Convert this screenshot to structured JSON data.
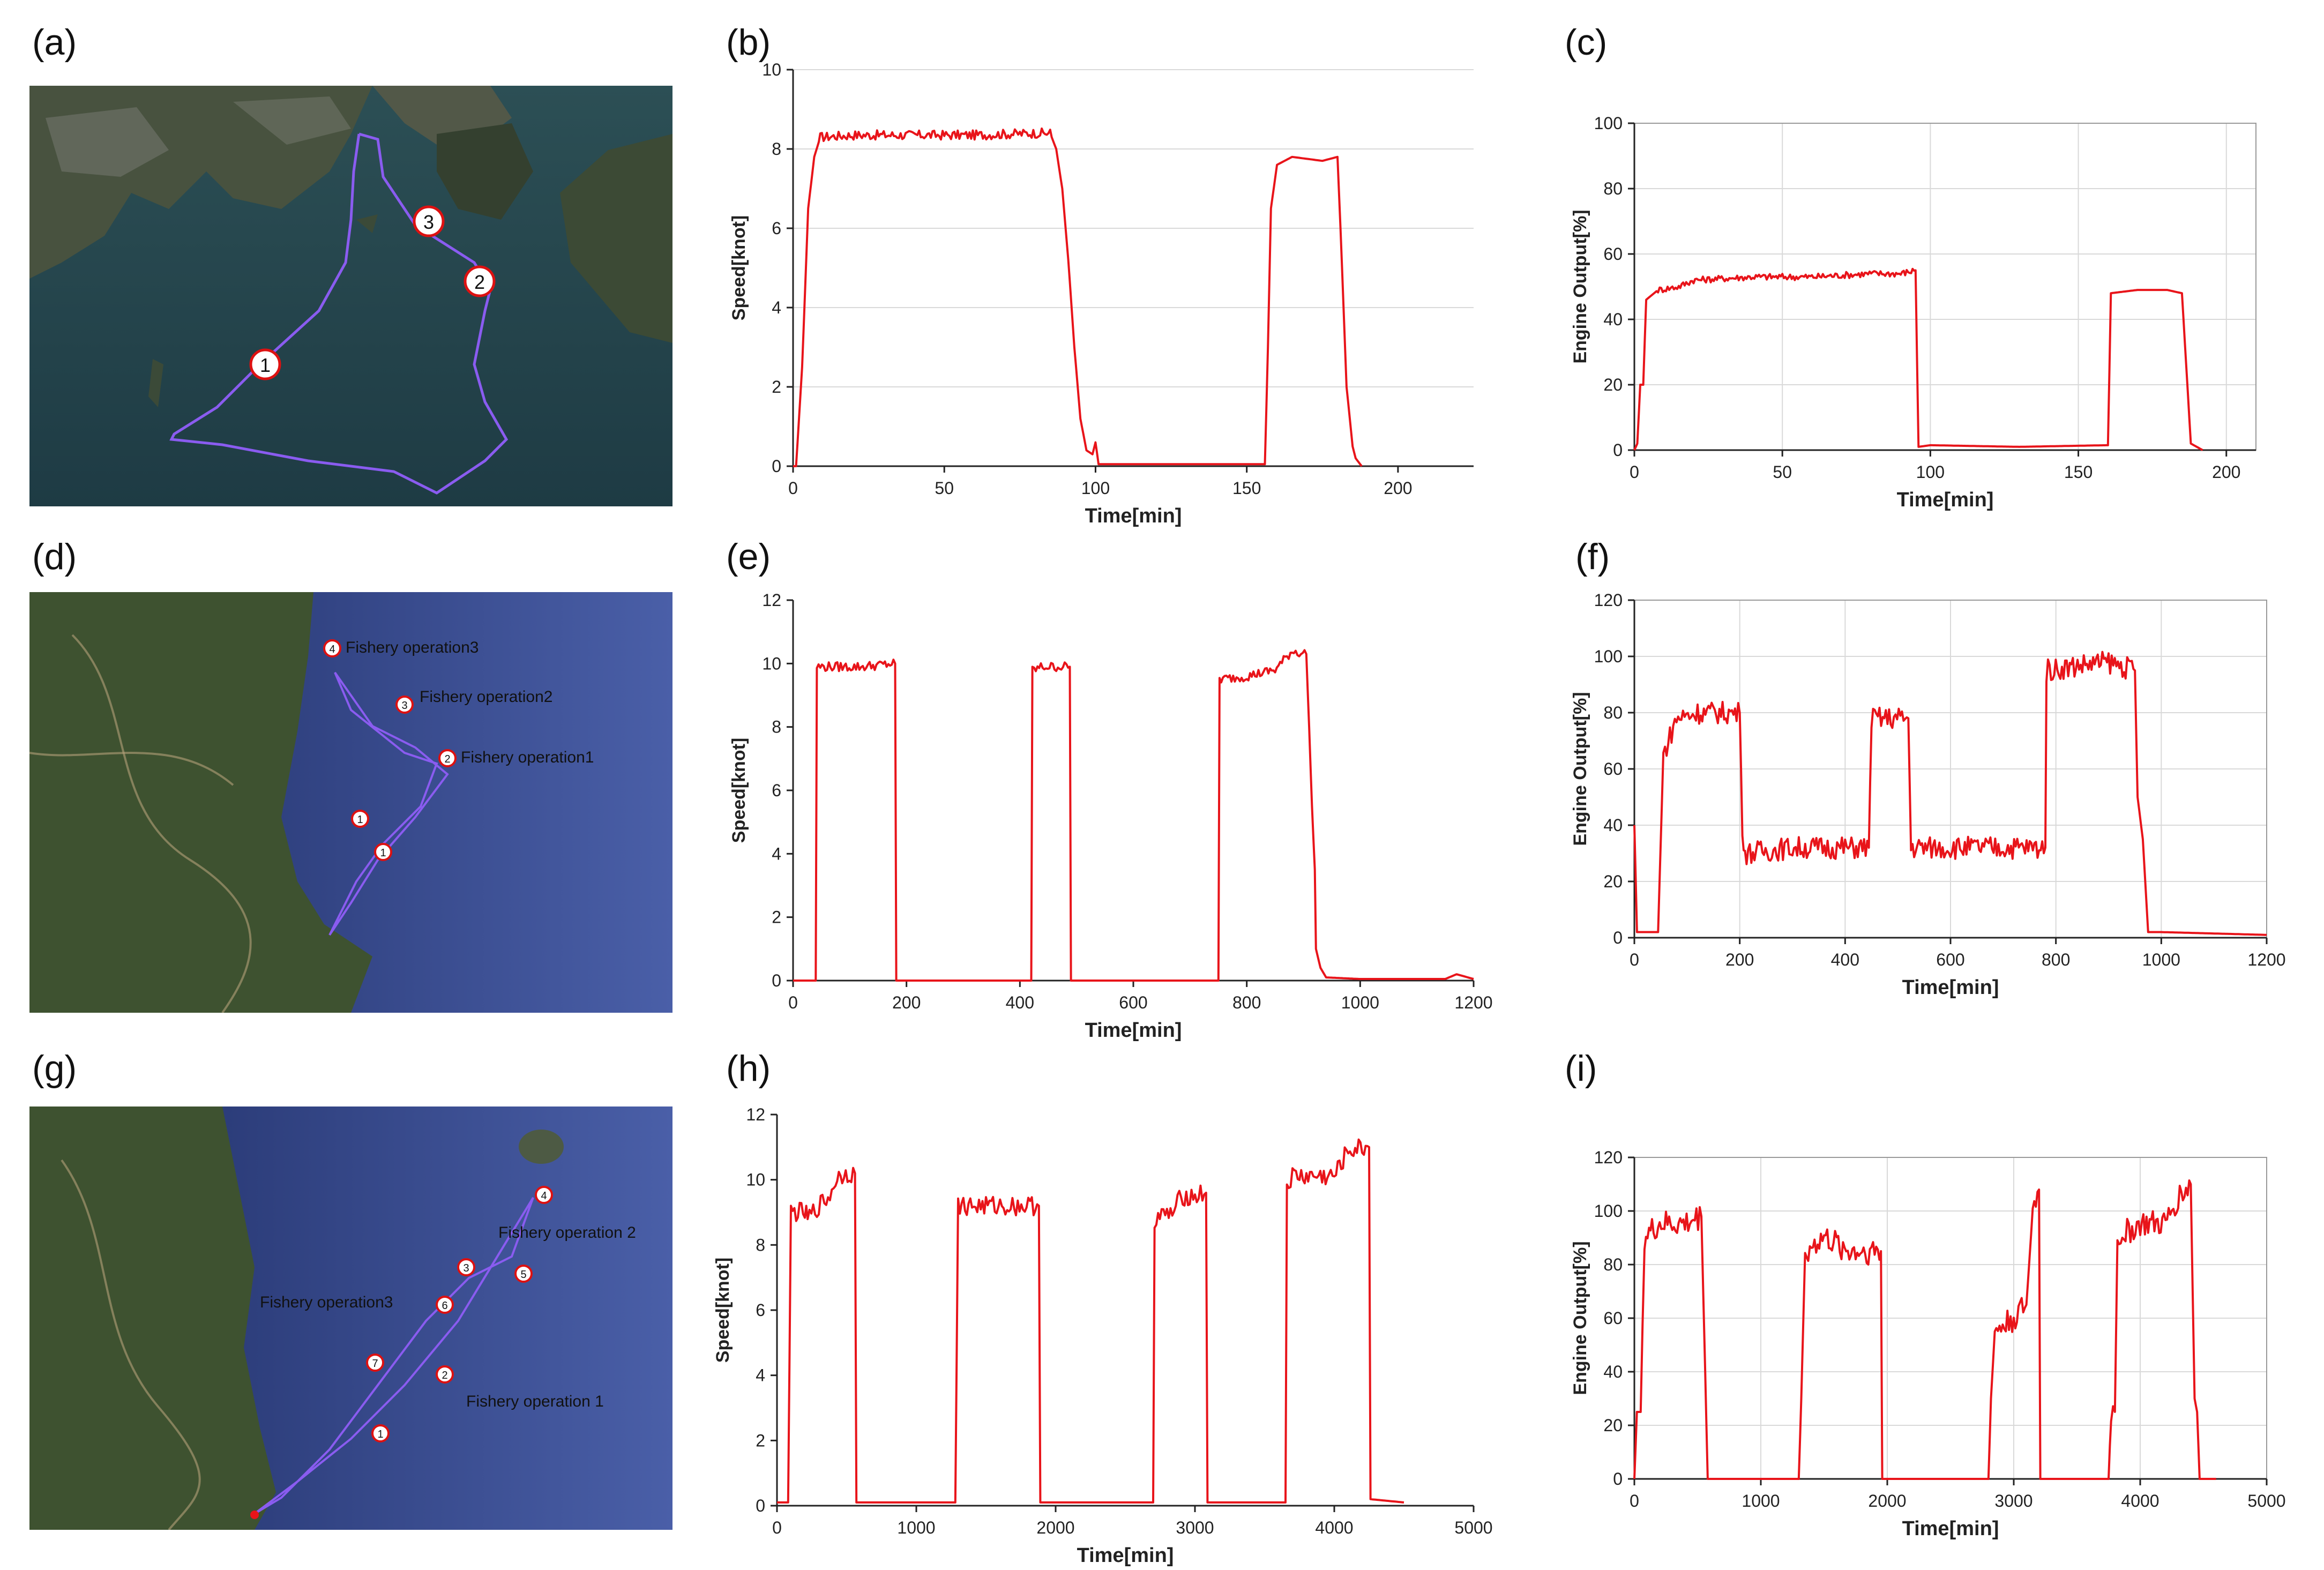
{
  "panel_labels": [
    "(a)",
    "(b)",
    "(c)",
    "(d)",
    "(e)",
    "(f)",
    "(g)",
    "(h)",
    "(i)"
  ],
  "maps": {
    "a": {
      "markers": [
        "1",
        "2",
        "3"
      ]
    },
    "d": {
      "markers": [
        "4",
        "3",
        "2",
        "1",
        "1"
      ],
      "labels": [
        "Fishery operation3",
        "Fishery operation2",
        "Fishery operation1"
      ]
    },
    "g": {
      "markers": [
        "4",
        "3",
        "5",
        "6",
        "7",
        "2",
        "1"
      ],
      "labels": [
        "Fishery operation 2",
        "Fishery operation3",
        "Fishery operation 1"
      ]
    }
  },
  "colors": {
    "line": "#e8141a",
    "track": "#8a5cf0",
    "grid": "#d9d9d9"
  },
  "chart_data": [
    {
      "id": "b",
      "type": "line",
      "xlabel": "Time[min]",
      "ylabel": "Speed[knot]",
      "xlim": [
        0,
        225
      ],
      "ylim": [
        0,
        10
      ],
      "xticks": [
        0,
        50,
        100,
        150,
        200
      ],
      "yticks": [
        0,
        2,
        4,
        6,
        8,
        10
      ],
      "grid": "horizontal",
      "series": [
        {
          "values": [
            [
              0,
              0
            ],
            [
              1,
              0
            ],
            [
              3,
              2.5
            ],
            [
              5,
              6.5
            ],
            [
              7,
              7.8
            ],
            [
              9,
              8.3
            ],
            [
              20,
              8.35
            ],
            [
              40,
              8.35
            ],
            [
              60,
              8.35
            ],
            [
              80,
              8.4
            ],
            [
              85,
              8.4
            ],
            [
              87,
              8.0
            ],
            [
              89,
              7.0
            ],
            [
              91,
              5.2
            ],
            [
              93,
              3.0
            ],
            [
              95,
              1.2
            ],
            [
              97,
              0.4
            ],
            [
              99,
              0.3
            ],
            [
              100,
              0.6
            ],
            [
              101,
              0.05
            ],
            [
              110,
              0.05
            ],
            [
              130,
              0.05
            ],
            [
              150,
              0.05
            ],
            [
              156,
              0.05
            ],
            [
              157,
              3
            ],
            [
              158,
              6.5
            ],
            [
              160,
              7.6
            ],
            [
              165,
              7.8
            ],
            [
              175,
              7.7
            ],
            [
              180,
              7.8
            ],
            [
              181,
              6
            ],
            [
              183,
              2
            ],
            [
              185,
              0.5
            ],
            [
              186,
              0.2
            ],
            [
              188,
              0
            ]
          ],
          "noise": 0.12,
          "flat_from": 9,
          "flat_to": 85
        }
      ]
    },
    {
      "id": "c",
      "type": "line",
      "xlabel": "Time[min]",
      "ylabel": "Engine Output[%]",
      "xlim": [
        0,
        210
      ],
      "ylim": [
        0,
        100
      ],
      "xticks": [
        0,
        50,
        100,
        150,
        200
      ],
      "yticks": [
        0,
        20,
        40,
        60,
        80,
        100
      ],
      "grid": "both",
      "series": [
        {
          "values": [
            [
              0,
              0
            ],
            [
              1,
              2
            ],
            [
              2,
              20
            ],
            [
              3,
              20
            ],
            [
              4,
              46
            ],
            [
              8,
              49
            ],
            [
              15,
              50
            ],
            [
              20,
              52
            ],
            [
              40,
              53
            ],
            [
              60,
              53
            ],
            [
              80,
              54
            ],
            [
              90,
              54
            ],
            [
              95,
              55
            ],
            [
              96,
              1
            ],
            [
              100,
              1.5
            ],
            [
              130,
              1
            ],
            [
              160,
              1.5
            ],
            [
              161,
              48
            ],
            [
              170,
              49
            ],
            [
              180,
              49
            ],
            [
              185,
              48
            ],
            [
              188,
              2
            ],
            [
              192,
              0
            ]
          ],
          "noise": 1.0,
          "flat_from": 8,
          "flat_to": 94
        }
      ]
    },
    {
      "id": "e",
      "type": "line",
      "xlabel": "Time[min]",
      "ylabel": "Speed[knot]",
      "xlim": [
        0,
        1200
      ],
      "ylim": [
        0,
        12
      ],
      "xticks": [
        0,
        200,
        400,
        600,
        800,
        1000,
        1200
      ],
      "yticks": [
        0,
        2,
        4,
        6,
        8,
        10,
        12
      ],
      "grid": "none",
      "series": [
        {
          "values": [
            [
              0,
              0
            ],
            [
              40,
              0
            ],
            [
              42,
              9.9
            ],
            [
              60,
              9.9
            ],
            [
              120,
              9.9
            ],
            [
              180,
              10.0
            ],
            [
              182,
              0
            ],
            [
              420,
              0
            ],
            [
              422,
              9.8
            ],
            [
              440,
              9.9
            ],
            [
              488,
              9.9
            ],
            [
              490,
              0
            ],
            [
              750,
              0
            ],
            [
              752,
              9.5
            ],
            [
              800,
              9.6
            ],
            [
              850,
              9.8
            ],
            [
              880,
              10.4
            ],
            [
              905,
              10.3
            ],
            [
              910,
              8
            ],
            [
              915,
              5.5
            ],
            [
              920,
              3.5
            ],
            [
              922,
              1
            ],
            [
              930,
              0.4
            ],
            [
              940,
              0.1
            ],
            [
              1000,
              0.05
            ],
            [
              1150,
              0.05
            ],
            [
              1170,
              0.2
            ],
            [
              1200,
              0.05
            ]
          ],
          "noise": 0.15,
          "flat_from": 42,
          "flat_to": 905
        }
      ]
    },
    {
      "id": "f",
      "type": "line",
      "xlabel": "Time[min]",
      "ylabel": "Engine Output[%]",
      "xlim": [
        0,
        1200
      ],
      "ylim": [
        0,
        120
      ],
      "xticks": [
        0,
        200,
        400,
        600,
        800,
        1000,
        1200
      ],
      "yticks": [
        0,
        20,
        40,
        60,
        80,
        100,
        120
      ],
      "grid": "both",
      "series": [
        {
          "values": [
            [
              0,
              40
            ],
            [
              5,
              2
            ],
            [
              45,
              2
            ],
            [
              55,
              65
            ],
            [
              80,
              78
            ],
            [
              120,
              80
            ],
            [
              200,
              80
            ],
            [
              205,
              40
            ],
            [
              210,
              30
            ],
            [
              300,
              32
            ],
            [
              400,
              32
            ],
            [
              445,
              32
            ],
            [
              450,
              78
            ],
            [
              520,
              78
            ],
            [
              525,
              32
            ],
            [
              600,
              32
            ],
            [
              700,
              32
            ],
            [
              780,
              32
            ],
            [
              782,
              95
            ],
            [
              850,
              97
            ],
            [
              900,
              98
            ],
            [
              950,
              95
            ],
            [
              955,
              50
            ],
            [
              965,
              35
            ],
            [
              975,
              2
            ],
            [
              1000,
              2
            ],
            [
              1200,
              1
            ]
          ],
          "noise": 4.0,
          "flat_from": 55,
          "flat_to": 950
        }
      ]
    },
    {
      "id": "h",
      "type": "line",
      "xlabel": "Time[min]",
      "ylabel": "Speed[knot]",
      "xlim": [
        0,
        5000
      ],
      "ylim": [
        0,
        12
      ],
      "xticks": [
        0,
        1000,
        2000,
        3000,
        4000,
        5000
      ],
      "yticks": [
        0,
        2,
        4,
        6,
        8,
        10,
        12
      ],
      "grid": "none",
      "series": [
        {
          "values": [
            [
              0,
              0.1
            ],
            [
              80,
              0.1
            ],
            [
              100,
              9.0
            ],
            [
              200,
              9.0
            ],
            [
              220,
              8.8
            ],
            [
              300,
              9.2
            ],
            [
              380,
              9.5
            ],
            [
              420,
              10.0
            ],
            [
              480,
              10.2
            ],
            [
              560,
              10.2
            ],
            [
              570,
              0.1
            ],
            [
              1000,
              0.1
            ],
            [
              1280,
              0.1
            ],
            [
              1300,
              9.2
            ],
            [
              1500,
              9.2
            ],
            [
              1880,
              9.2
            ],
            [
              1890,
              0.1
            ],
            [
              2400,
              0.1
            ],
            [
              2700,
              0.1
            ],
            [
              2710,
              8.8
            ],
            [
              2850,
              9.0
            ],
            [
              2900,
              9.5
            ],
            [
              3000,
              9.5
            ],
            [
              3080,
              9.6
            ],
            [
              3090,
              0.1
            ],
            [
              3600,
              0.1
            ],
            [
              3650,
              0.1
            ],
            [
              3660,
              9.8
            ],
            [
              3700,
              10.1
            ],
            [
              4000,
              10.1
            ],
            [
              4100,
              10.9
            ],
            [
              4250,
              11.0
            ],
            [
              4260,
              0.2
            ],
            [
              4500,
              0.1
            ]
          ],
          "noise": 0.3,
          "flat_from": 100,
          "flat_to": 4250
        }
      ]
    },
    {
      "id": "i",
      "type": "line",
      "xlabel": "Time[min]",
      "ylabel": "Engine Output[%]",
      "xlim": [
        0,
        5000
      ],
      "ylim": [
        0,
        120
      ],
      "xticks": [
        0,
        1000,
        2000,
        3000,
        4000,
        5000
      ],
      "yticks": [
        0,
        20,
        40,
        60,
        80,
        100,
        120
      ],
      "grid": "both",
      "series": [
        {
          "values": [
            [
              0,
              0
            ],
            [
              20,
              25
            ],
            [
              50,
              25
            ],
            [
              80,
              90
            ],
            [
              200,
              95
            ],
            [
              400,
              95
            ],
            [
              530,
              98
            ],
            [
              560,
              40
            ],
            [
              580,
              0
            ],
            [
              1300,
              0
            ],
            [
              1320,
              30
            ],
            [
              1350,
              85
            ],
            [
              1500,
              90
            ],
            [
              1700,
              85
            ],
            [
              1950,
              85
            ],
            [
              1960,
              0
            ],
            [
              2800,
              0
            ],
            [
              2820,
              30
            ],
            [
              2850,
              55
            ],
            [
              3000,
              60
            ],
            [
              3100,
              65
            ],
            [
              3150,
              100
            ],
            [
              3200,
              108
            ],
            [
              3210,
              0
            ],
            [
              3750,
              0
            ],
            [
              3770,
              25
            ],
            [
              3800,
              25
            ],
            [
              3820,
              90
            ],
            [
              4000,
              95
            ],
            [
              4200,
              95
            ],
            [
              4300,
              105
            ],
            [
              4400,
              110
            ],
            [
              4430,
              30
            ],
            [
              4450,
              25
            ],
            [
              4470,
              0
            ],
            [
              4600,
              0
            ]
          ],
          "noise": 5.0,
          "flat_from": 80,
          "flat_to": 4420
        }
      ]
    }
  ]
}
